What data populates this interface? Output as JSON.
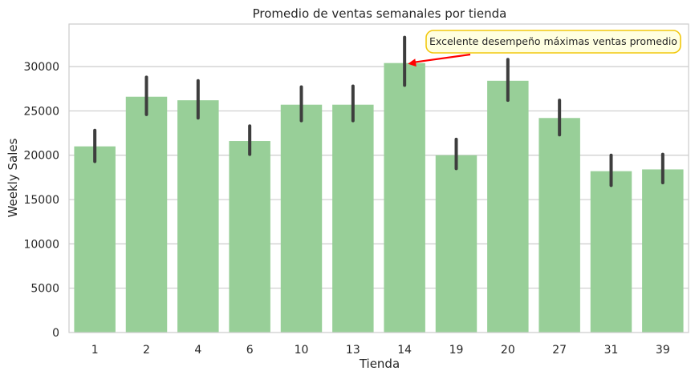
{
  "chart_data": {
    "type": "bar",
    "title": "Promedio de ventas semanales por tienda",
    "xlabel": "Tienda",
    "ylabel": "Weekly Sales",
    "categories": [
      "1",
      "2",
      "4",
      "6",
      "10",
      "13",
      "14",
      "19",
      "20",
      "27",
      "31",
      "39"
    ],
    "values": [
      21000,
      26600,
      26200,
      21600,
      25700,
      25700,
      30400,
      20000,
      28400,
      24200,
      18200,
      18400
    ],
    "error_low": [
      19300,
      24600,
      24200,
      20100,
      23900,
      23900,
      27900,
      18500,
      26200,
      22300,
      16600,
      16900
    ],
    "error_high": [
      22800,
      28800,
      28400,
      23300,
      27700,
      27800,
      33300,
      21800,
      30800,
      26200,
      20000,
      20100
    ],
    "ylim": [
      0,
      34800
    ],
    "yticks": [
      0,
      5000,
      10000,
      15000,
      20000,
      25000,
      30000
    ],
    "grid": true,
    "colors": {
      "bar": "#98cf98",
      "errorbar": "#3d3d3d",
      "grid": "#cccccc",
      "arrow": "#ff0000",
      "annotation_border": "#f2c80f",
      "annotation_fill": "#ffffe0"
    },
    "annotation": {
      "text": "Excelente desempeño máximas ventas promedio",
      "target_category": "14",
      "target_value": 30400
    }
  }
}
